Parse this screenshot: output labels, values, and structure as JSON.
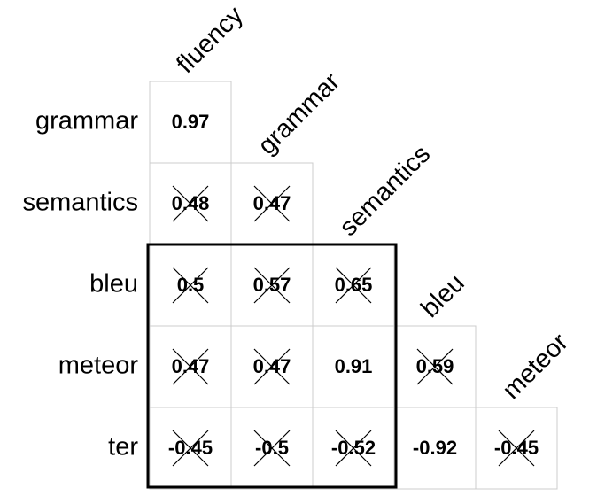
{
  "chart_data": {
    "type": "correlation-matrix",
    "rows": [
      "grammar",
      "semantics",
      "bleu",
      "meteor",
      "ter"
    ],
    "columns": [
      "fluency",
      "grammar",
      "semantics",
      "bleu",
      "meteor"
    ],
    "values": [
      [
        0.97
      ],
      [
        0.48,
        0.47
      ],
      [
        0.5,
        0.57,
        0.65
      ],
      [
        0.47,
        0.47,
        0.91,
        0.59
      ],
      [
        -0.45,
        -0.5,
        -0.52,
        -0.92,
        -0.45
      ]
    ],
    "crossed": [
      [
        false
      ],
      [
        true,
        true
      ],
      [
        true,
        true,
        true
      ],
      [
        true,
        true,
        false,
        true
      ],
      [
        true,
        true,
        true,
        false,
        true
      ]
    ]
  }
}
